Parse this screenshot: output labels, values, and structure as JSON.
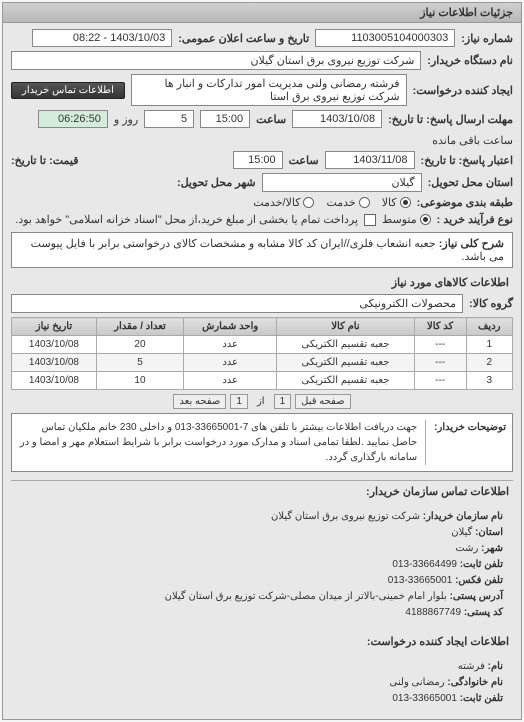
{
  "panel_title": "جزئیات اطلاعات نیاز",
  "req_num_label": "شماره نیاز:",
  "req_num": "1103005104000303",
  "pub_date_label": "تاریخ و ساعت اعلان عمومی:",
  "pub_date": "1403/10/03 - 08:22",
  "buyer_org_label": "نام دستگاه خریدار:",
  "buyer_org": "شرکت توزیع نیروی برق استان گیلان",
  "requester_label": "ایجاد کننده درخواست:",
  "requester": "فرشته رمضانی ولنی مدیریت امور تدارکات و انبار ها شرکت توزیع نیروی برق استا",
  "contact_btn": "اطلاعات تماس خریدار",
  "deadline_label": "مهلت ارسال پاسخ: تا تاریخ:",
  "deadline_date": "1403/10/08",
  "time_label": "ساعت",
  "deadline_time": "15:00",
  "days_remain": "5",
  "days_text": "روز و",
  "time_remain": "06:26:50",
  "time_remain_text": "ساعت باقی مانده",
  "validity_label": "اعتبار پاسخ: تا تاریخ:",
  "validity_date": "1403/11/08",
  "validity_time": "15:00",
  "loc_label": "استان محل تحویل:",
  "loc_val": "گیلان",
  "price_label": "قیمت: تا تاریخ:",
  "city_label": "شهر محل تحویل:",
  "pack_label": "طبقه بندی موضوعی:",
  "pack_opts": {
    "goods": "کالا",
    "service": "کالا/خدمت"
  },
  "pack_goods": "کالا",
  "pack_service": "خدمت",
  "pack_both": "کالا/خدمت",
  "proc_label": "نوع فرآیند خرید :",
  "proc_opts": {
    "mid": "متوسط",
    "partial": "پرداخت تمام یا بخشی از مبلغ خرید،از محل \"اسناد خزانه اسلامی\" خواهد بود."
  },
  "main_title_label": "شرح کلی نیاز:",
  "main_title": "جعبه انشعاب فلزی//ایران کد کالا مشابه و مشخصات کالای درخواستی برابر با فایل پیوست می باشد.",
  "goods_section": "اطلاعات کالاهای مورد نیاز",
  "group_label": "گروه کالا:",
  "group_val": "محصولات الکترونیکی",
  "table": {
    "headers": [
      "ردیف",
      "کد کالا",
      "نام کالا",
      "واحد شمارش",
      "تعداد / مقدار",
      "تاریخ نیاز"
    ],
    "rows": [
      [
        "1",
        "---",
        "جعبه تقسیم الکتریکی",
        "عدد",
        "20",
        "1403/10/08"
      ],
      [
        "2",
        "---",
        "جعبه تقسیم الکتریکی",
        "عدد",
        "5",
        "1403/10/08"
      ],
      [
        "3",
        "---",
        "جعبه تقسیم الکتریکی",
        "عدد",
        "10",
        "1403/10/08"
      ]
    ]
  },
  "pager": {
    "prev": "صفحه قبل",
    "pg": "1",
    "of_label": "از",
    "of": "1",
    "next": "صفحه بعد"
  },
  "notes_label": "توضیحات خریدار:",
  "notes_text": "جهت دریافت اطلاعات بیشتر با تلفن های 7-33665001-013 و داخلی 230 خانم ملکیان تماس حاصل نمایید .لطفا تمامی اسناد و مدارک مورد درخواست برابر با شرایط استعلام مهر و امضا و در سامانه بارگذاری گردد.",
  "contact_section": "اطلاعات تماس سازمان خریدار:",
  "contact": {
    "org_l": "نام سازمان خریدار:",
    "org": "شرکت توزیع نیروی برق استان گیلان",
    "prov_l": "استان:",
    "prov": "گیلان",
    "city_l": "شهر:",
    "city": "رشت",
    "tel_l": "تلفن ثابت:",
    "tel": "33664499-013",
    "fax_l": "تلفن فکس:",
    "fax": "33665001-013",
    "addr_l": "آدرس پستی:",
    "addr": "بلوار امام خمینی-بالاتر از میدان مصلی-شرکت توزیع برق استان گیلان",
    "post_l": "کد پستی:",
    "post": "4188867749"
  },
  "creator_section": "اطلاعات ایجاد کننده درخواست:",
  "creator": {
    "name_l": "نام:",
    "name": "فرشته",
    "fam_l": "نام خانوادگی:",
    "fam": "رمضانی ولنی",
    "tel_l": "تلفن ثابت:",
    "tel": "33665001-013"
  }
}
